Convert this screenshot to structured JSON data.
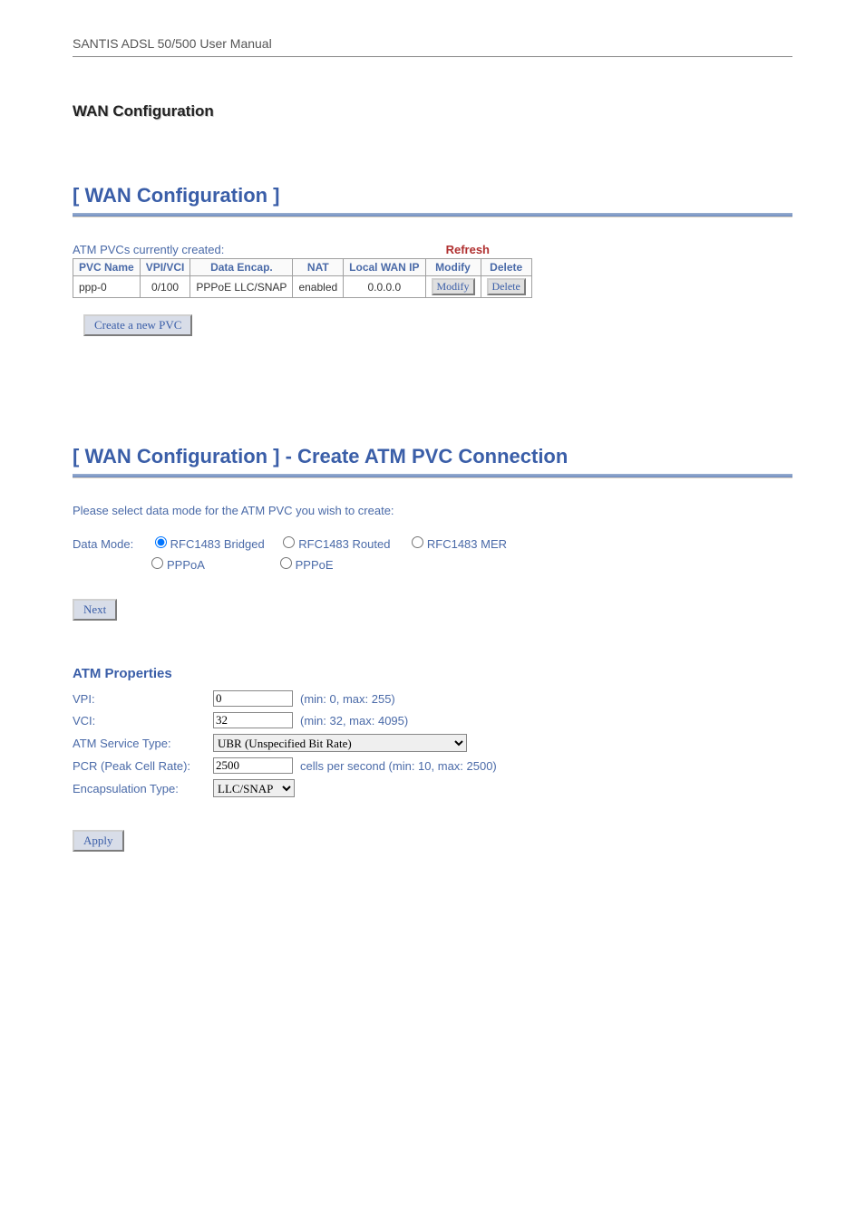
{
  "doc_header": "SANTIS ADSL 50/500 User Manual",
  "section_title": "WAN Configuration",
  "panel1": {
    "title": "[ WAN Configuration ]",
    "table_caption": "ATM PVCs currently created:",
    "refresh_label": "Refresh",
    "columns": {
      "c0": "PVC Name",
      "c1": "VPI/VCI",
      "c2": "Data Encap.",
      "c3": "NAT",
      "c4": "Local WAN IP",
      "c5": "Modify",
      "c6": "Delete"
    },
    "row": {
      "name": "ppp-0",
      "vpivci": "0/100",
      "encap": "PPPoE  LLC/SNAP",
      "nat": "enabled",
      "ip": "0.0.0.0",
      "modify_btn": "Modify",
      "delete_btn": "Delete"
    },
    "create_btn": "Create a new PVC"
  },
  "panel2": {
    "title": "[ WAN Configuration ] - Create ATM PVC Connection",
    "intro": "Please select data mode for the ATM PVC you wish to create:",
    "data_mode_label": "Data Mode:",
    "options": {
      "o0": "RFC1483 Bridged",
      "o1": "RFC1483 Routed",
      "o2": "RFC1483 MER",
      "o3": "PPPoA",
      "o4": "PPPoE"
    },
    "next_btn": "Next",
    "atm_heading": "ATM Properties",
    "vpi": {
      "label": "VPI:",
      "value": "0",
      "hint": "(min: 0, max: 255)"
    },
    "vci": {
      "label": "VCI:",
      "value": "32",
      "hint": "(min: 32, max: 4095)"
    },
    "service": {
      "label": "ATM Service Type:",
      "value": "UBR (Unspecified Bit Rate)"
    },
    "pcr": {
      "label": "PCR (Peak Cell Rate):",
      "value": "2500",
      "hint": "cells per second (min: 10, max: 2500)"
    },
    "encap": {
      "label": "Encapsulation Type:",
      "value": "LLC/SNAP"
    },
    "apply_btn": "Apply"
  }
}
